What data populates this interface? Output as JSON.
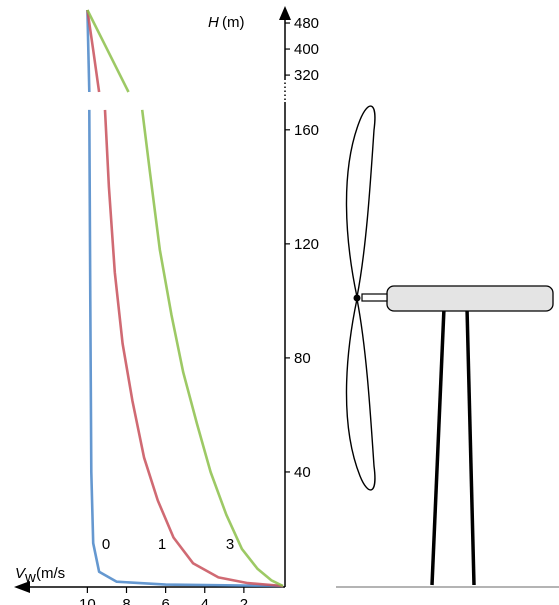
{
  "chart_data": [
    {
      "type": "line",
      "y_label": "H",
      "y_unit": "(m)",
      "ylim": [
        268,
        520
      ],
      "yticks": [
        320,
        400,
        480
      ],
      "xlim": [
        0,
        13.7
      ],
      "series": [
        {
          "name": "0",
          "color": "#4a86c8",
          "x": [
            10,
            9.9
          ],
          "values": [
            520,
            268
          ]
        },
        {
          "name": "1",
          "color": "#c8505a",
          "x": [
            10,
            9.7,
            9.4
          ],
          "values": [
            520,
            397,
            268
          ]
        },
        {
          "name": "3",
          "color": "#8cc04a",
          "x": [
            10,
            9.1,
            7.9
          ],
          "values": [
            520,
            412,
            268
          ]
        }
      ]
    },
    {
      "type": "line",
      "x_label": "V",
      "x_label_sub": "w",
      "x_unit": "(m/s",
      "ylim": [
        0,
        168
      ],
      "yticks": [
        40,
        80,
        120,
        160
      ],
      "xlim": [
        0,
        13.7
      ],
      "xticks": [
        10,
        8,
        6,
        4,
        2
      ],
      "series": [
        {
          "name": "0",
          "color": "#4a86c8",
          "x": [
            9.9,
            9.85,
            9.8,
            9.7,
            9.4,
            8.5,
            6,
            0
          ],
          "values": [
            167,
            100,
            40,
            15,
            5,
            1.5,
            0.5,
            0
          ]
        },
        {
          "name": "1",
          "color": "#c8505a",
          "x": [
            9.1,
            8.9,
            8.6,
            8.2,
            7.7,
            7.1,
            6.4,
            5.6,
            4.6,
            3.3,
            1.8,
            0
          ],
          "values": [
            167,
            140,
            110,
            85,
            65,
            45,
            30,
            17,
            8,
            3,
            1,
            0
          ]
        },
        {
          "name": "3",
          "color": "#8cc04a",
          "x": [
            7.2,
            6.8,
            6.3,
            5.7,
            5.1,
            4.4,
            3.7,
            2.9,
            2.1,
            1.3,
            0.6,
            0
          ],
          "values": [
            167,
            145,
            118,
            95,
            75,
            57,
            40,
            25,
            13,
            6,
            2,
            0
          ]
        }
      ]
    }
  ]
}
